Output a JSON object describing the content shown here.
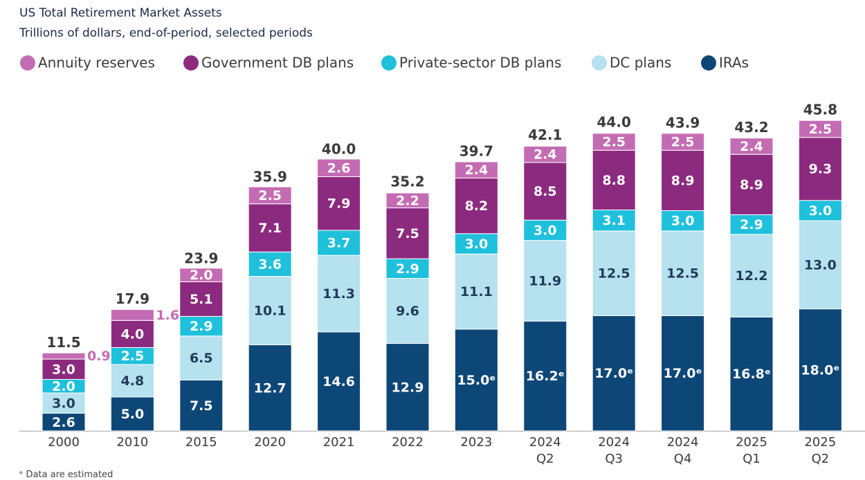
{
  "chart_data": {
    "type": "stacked-bar",
    "title": "US Total Retirement Market Assets",
    "subtitle": "Trillions of dollars, end-of-period, selected periods",
    "footnote": "ᵉ Data are estimated",
    "categories": [
      "2000",
      "2010",
      "2015",
      "2020",
      "2021",
      "2022",
      "2023",
      "2024\nQ2",
      "2024\nQ3",
      "2024\nQ4",
      "2025\nQ1",
      "2025\nQ2"
    ],
    "series": [
      {
        "name": "Annuity reserves",
        "color": "#c46cb3",
        "values": [
          0.9,
          1.6,
          2.0,
          2.5,
          2.6,
          2.2,
          2.4,
          2.4,
          2.5,
          2.5,
          2.4,
          2.5
        ],
        "value_labels": [
          "0.9",
          "1.6",
          "2.0",
          "2.5",
          "2.6",
          "2.2",
          "2.4",
          "2.4",
          "2.5",
          "2.5",
          "2.4",
          "2.5"
        ]
      },
      {
        "name": "Government DB plans",
        "color": "#8c2a7f",
        "values": [
          3.0,
          4.0,
          5.1,
          7.1,
          7.9,
          7.5,
          8.2,
          8.5,
          8.8,
          8.9,
          8.9,
          9.3
        ],
        "value_labels": [
          "3.0",
          "4.0",
          "5.1",
          "7.1",
          "7.9",
          "7.5",
          "8.2",
          "8.5",
          "8.8",
          "8.9",
          "8.9",
          "9.3"
        ]
      },
      {
        "name": "Private-sector DB plans",
        "color": "#1fc0dc",
        "values": [
          2.0,
          2.5,
          2.9,
          3.6,
          3.7,
          2.9,
          3.0,
          3.0,
          3.1,
          3.0,
          2.9,
          3.0
        ],
        "value_labels": [
          "2.0",
          "2.5",
          "2.9",
          "3.6",
          "3.7",
          "2.9",
          "3.0",
          "3.0",
          "3.1",
          "3.0",
          "2.9",
          "3.0"
        ]
      },
      {
        "name": "DC plans",
        "color": "#b6e1ef",
        "values": [
          3.0,
          4.8,
          6.5,
          10.1,
          11.3,
          9.6,
          11.1,
          11.9,
          12.5,
          12.5,
          12.2,
          13.0
        ],
        "value_labels": [
          "3.0",
          "4.8",
          "6.5",
          "10.1",
          "11.3",
          "9.6",
          "11.1",
          "11.9",
          "12.5",
          "12.5",
          "12.2",
          "13.0"
        ]
      },
      {
        "name": "IRAs",
        "color": "#0d4777",
        "values": [
          2.6,
          5.0,
          7.5,
          12.7,
          14.6,
          12.9,
          15.0,
          16.2,
          17.0,
          17.0,
          16.8,
          18.0
        ],
        "value_labels": [
          "2.6",
          "5.0",
          "7.5",
          "12.7",
          "14.6",
          "12.9",
          "15.0ᵉ",
          "16.2ᵉ",
          "17.0ᵉ",
          "17.0ᵉ",
          "16.8ᵉ",
          "18.0ᵉ"
        ]
      }
    ],
    "totals": [
      11.5,
      17.9,
      23.9,
      35.9,
      40.0,
      35.2,
      39.7,
      42.1,
      44.0,
      43.9,
      43.2,
      45.8
    ],
    "total_labels": [
      "11.5",
      "17.9",
      "23.9",
      "35.9",
      "40.0",
      "35.2",
      "39.7",
      "42.1",
      "44.0",
      "43.9",
      "43.2",
      "45.8"
    ],
    "legend": "top-left"
  }
}
